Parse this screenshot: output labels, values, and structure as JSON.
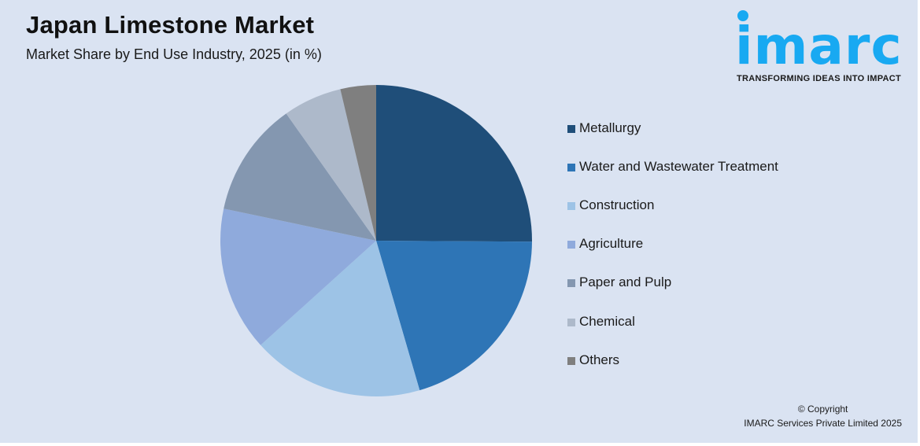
{
  "header": {
    "title": "Japan Limestone Market",
    "subtitle": "Market Share by End Use Industry, 2025 (in %)"
  },
  "logo": {
    "word": "imarc",
    "tagline": "TRANSFORMING IDEAS INTO IMPACT",
    "color": "#18a9f2"
  },
  "footer": {
    "copyright_line1": "© Copyright",
    "copyright_line2": "IMARC Services Private Limited 2025"
  },
  "legend": {
    "items": [
      {
        "label": "Metallurgy",
        "color": "#1f4e79"
      },
      {
        "label": "Water and Wastewater Treatment",
        "color": "#2e75b6"
      },
      {
        "label": "Construction",
        "color": "#9dc3e6"
      },
      {
        "label": "Agriculture",
        "color": "#8faadc"
      },
      {
        "label": "Paper and Pulp",
        "color": "#8497b0"
      },
      {
        "label": "Chemical",
        "color": "#adb9ca"
      },
      {
        "label": "Others",
        "color": "#7f7f7f"
      }
    ]
  },
  "chart_data": {
    "type": "pie",
    "title": "Japan Limestone Market",
    "subtitle": "Market Share by End Use Industry, 2025 (in %)",
    "categories": [
      "Metallurgy",
      "Water and Wastewater Treatment",
      "Construction",
      "Agriculture",
      "Paper and Pulp",
      "Chemical",
      "Others"
    ],
    "values": [
      25.1,
      20.4,
      17.8,
      15.0,
      11.9,
      6.1,
      3.7
    ],
    "colors": [
      "#1f4e79",
      "#2e75b6",
      "#9dc3e6",
      "#8faadc",
      "#8497b0",
      "#adb9ca",
      "#7f7f7f"
    ],
    "start_angle_deg": 0,
    "direction": "clockwise",
    "legend_position": "right",
    "data_labels": false
  }
}
